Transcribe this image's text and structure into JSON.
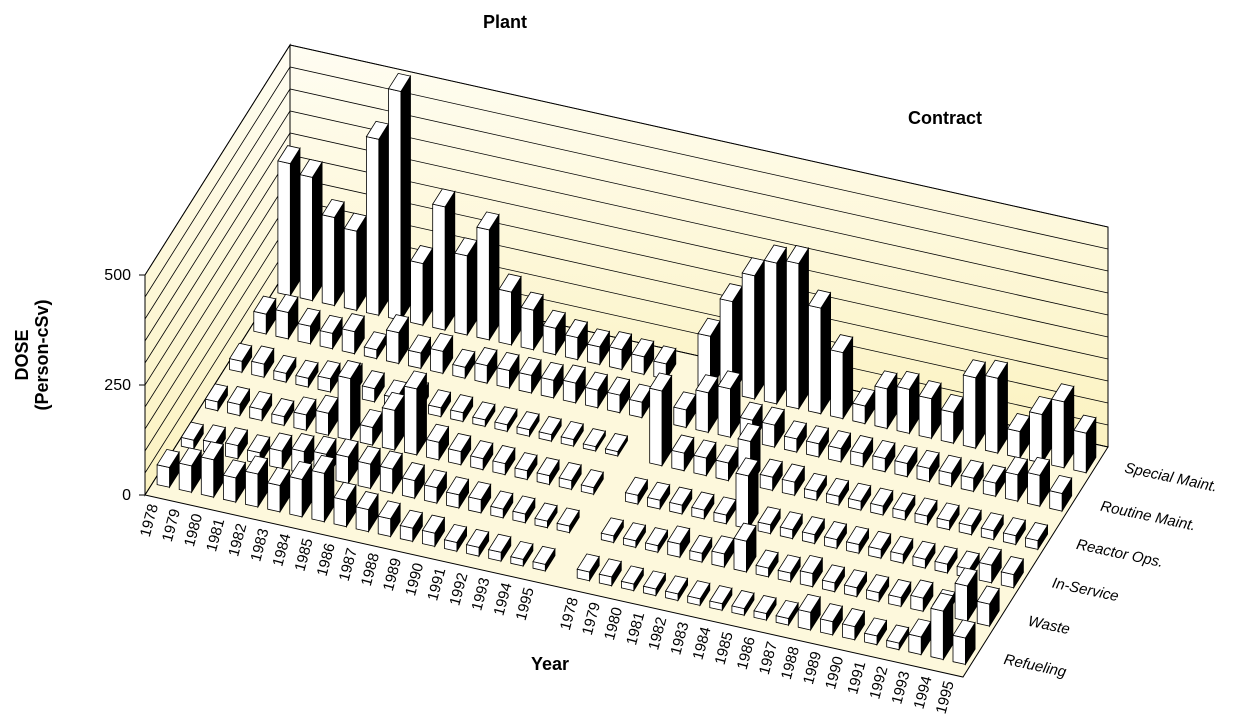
{
  "chart_data": {
    "type": "bar3d",
    "ylabel": [
      "DOSE",
      "(Person-cSv)"
    ],
    "xlabel": "Year",
    "categories": [
      "1978",
      "1979",
      "1980",
      "1981",
      "1982",
      "1983",
      "1984",
      "1985",
      "1986",
      "1987",
      "1988",
      "1989",
      "1990",
      "1991",
      "1992",
      "1993",
      "1994",
      "1995"
    ],
    "groups": [
      {
        "name": "Plant",
        "series": [
          {
            "name": "Refueling",
            "values": [
              45,
              60,
              85,
              55,
              75,
              60,
              85,
              110,
              60,
              50,
              40,
              30,
              30,
              20,
              20,
              20,
              15,
              15
            ]
          },
          {
            "name": "Waste",
            "values": [
              20,
              25,
              30,
              25,
              40,
              50,
              55,
              60,
              55,
              55,
              40,
              35,
              30,
              30,
              20,
              20,
              15,
              15
            ]
          },
          {
            "name": "In-Service",
            "values": [
              20,
              25,
              25,
              20,
              35,
              50,
              140,
              40,
              90,
              150,
              40,
              30,
              25,
              25,
              20,
              20,
              20,
              15
            ]
          },
          {
            "name": "Reactor Ops.",
            "values": [
              25,
              30,
              20,
              20,
              30,
              40,
              30,
              20,
              30,
              20,
              20,
              15,
              15,
              15,
              15,
              15,
              10,
              10
            ]
          },
          {
            "name": "Routine Maint.",
            "values": [
              45,
              60,
              40,
              35,
              50,
              20,
              70,
              35,
              50,
              25,
              40,
              40,
              40,
              40,
              45,
              40,
              40,
              35
            ]
          },
          {
            "name": "Special Maint.",
            "values": [
              300,
              280,
              200,
              180,
              400,
              520,
              140,
              280,
              180,
              250,
              120,
              90,
              60,
              50,
              40,
              45,
              40,
              35
            ]
          }
        ]
      },
      {
        "name": "Contract",
        "series": [
          {
            "name": "Refueling",
            "values": [
              20,
              20,
              15,
              15,
              15,
              15,
              15,
              15,
              15,
              15,
              40,
              30,
              30,
              20,
              15,
              40,
              110,
              60
            ]
          },
          {
            "name": "Waste",
            "values": [
              15,
              15,
              15,
              30,
              20,
              30,
              70,
              20,
              20,
              30,
              20,
              20,
              20,
              20,
              30,
              20,
              80,
              50
            ]
          },
          {
            "name": "In-Service",
            "values": [
              20,
              20,
              20,
              20,
              20,
              120,
              20,
              20,
              20,
              20,
              20,
              20,
              20,
              20,
              20,
              20,
              40,
              30
            ]
          },
          {
            "name": "Reactor Ops.",
            "values": [
              170,
              40,
              40,
              40,
              100,
              30,
              30,
              20,
              20,
              20,
              20,
              20,
              20,
              20,
              20,
              20,
              20,
              20
            ]
          },
          {
            "name": "Routine Maint.",
            "values": [
              40,
              90,
              110,
              50,
              50,
              30,
              30,
              30,
              30,
              30,
              30,
              30,
              30,
              30,
              30,
              60,
              70,
              40
            ]
          },
          {
            "name": "Special Maint.",
            "values": [
              120,
              210,
              280,
              320,
              330,
              240,
              150,
              40,
              90,
              100,
              90,
              70,
              160,
              170,
              60,
              110,
              150,
              90
            ]
          }
        ]
      }
    ],
    "ylim": [
      0,
      500
    ],
    "yticks": [
      0,
      250,
      500
    ],
    "minor_yticks": [
      50,
      100,
      150,
      200,
      300,
      350,
      400,
      450
    ],
    "grid": true,
    "color": "#ffffff",
    "side_color": "#000000",
    "wall_color": "#fbf2c0"
  }
}
